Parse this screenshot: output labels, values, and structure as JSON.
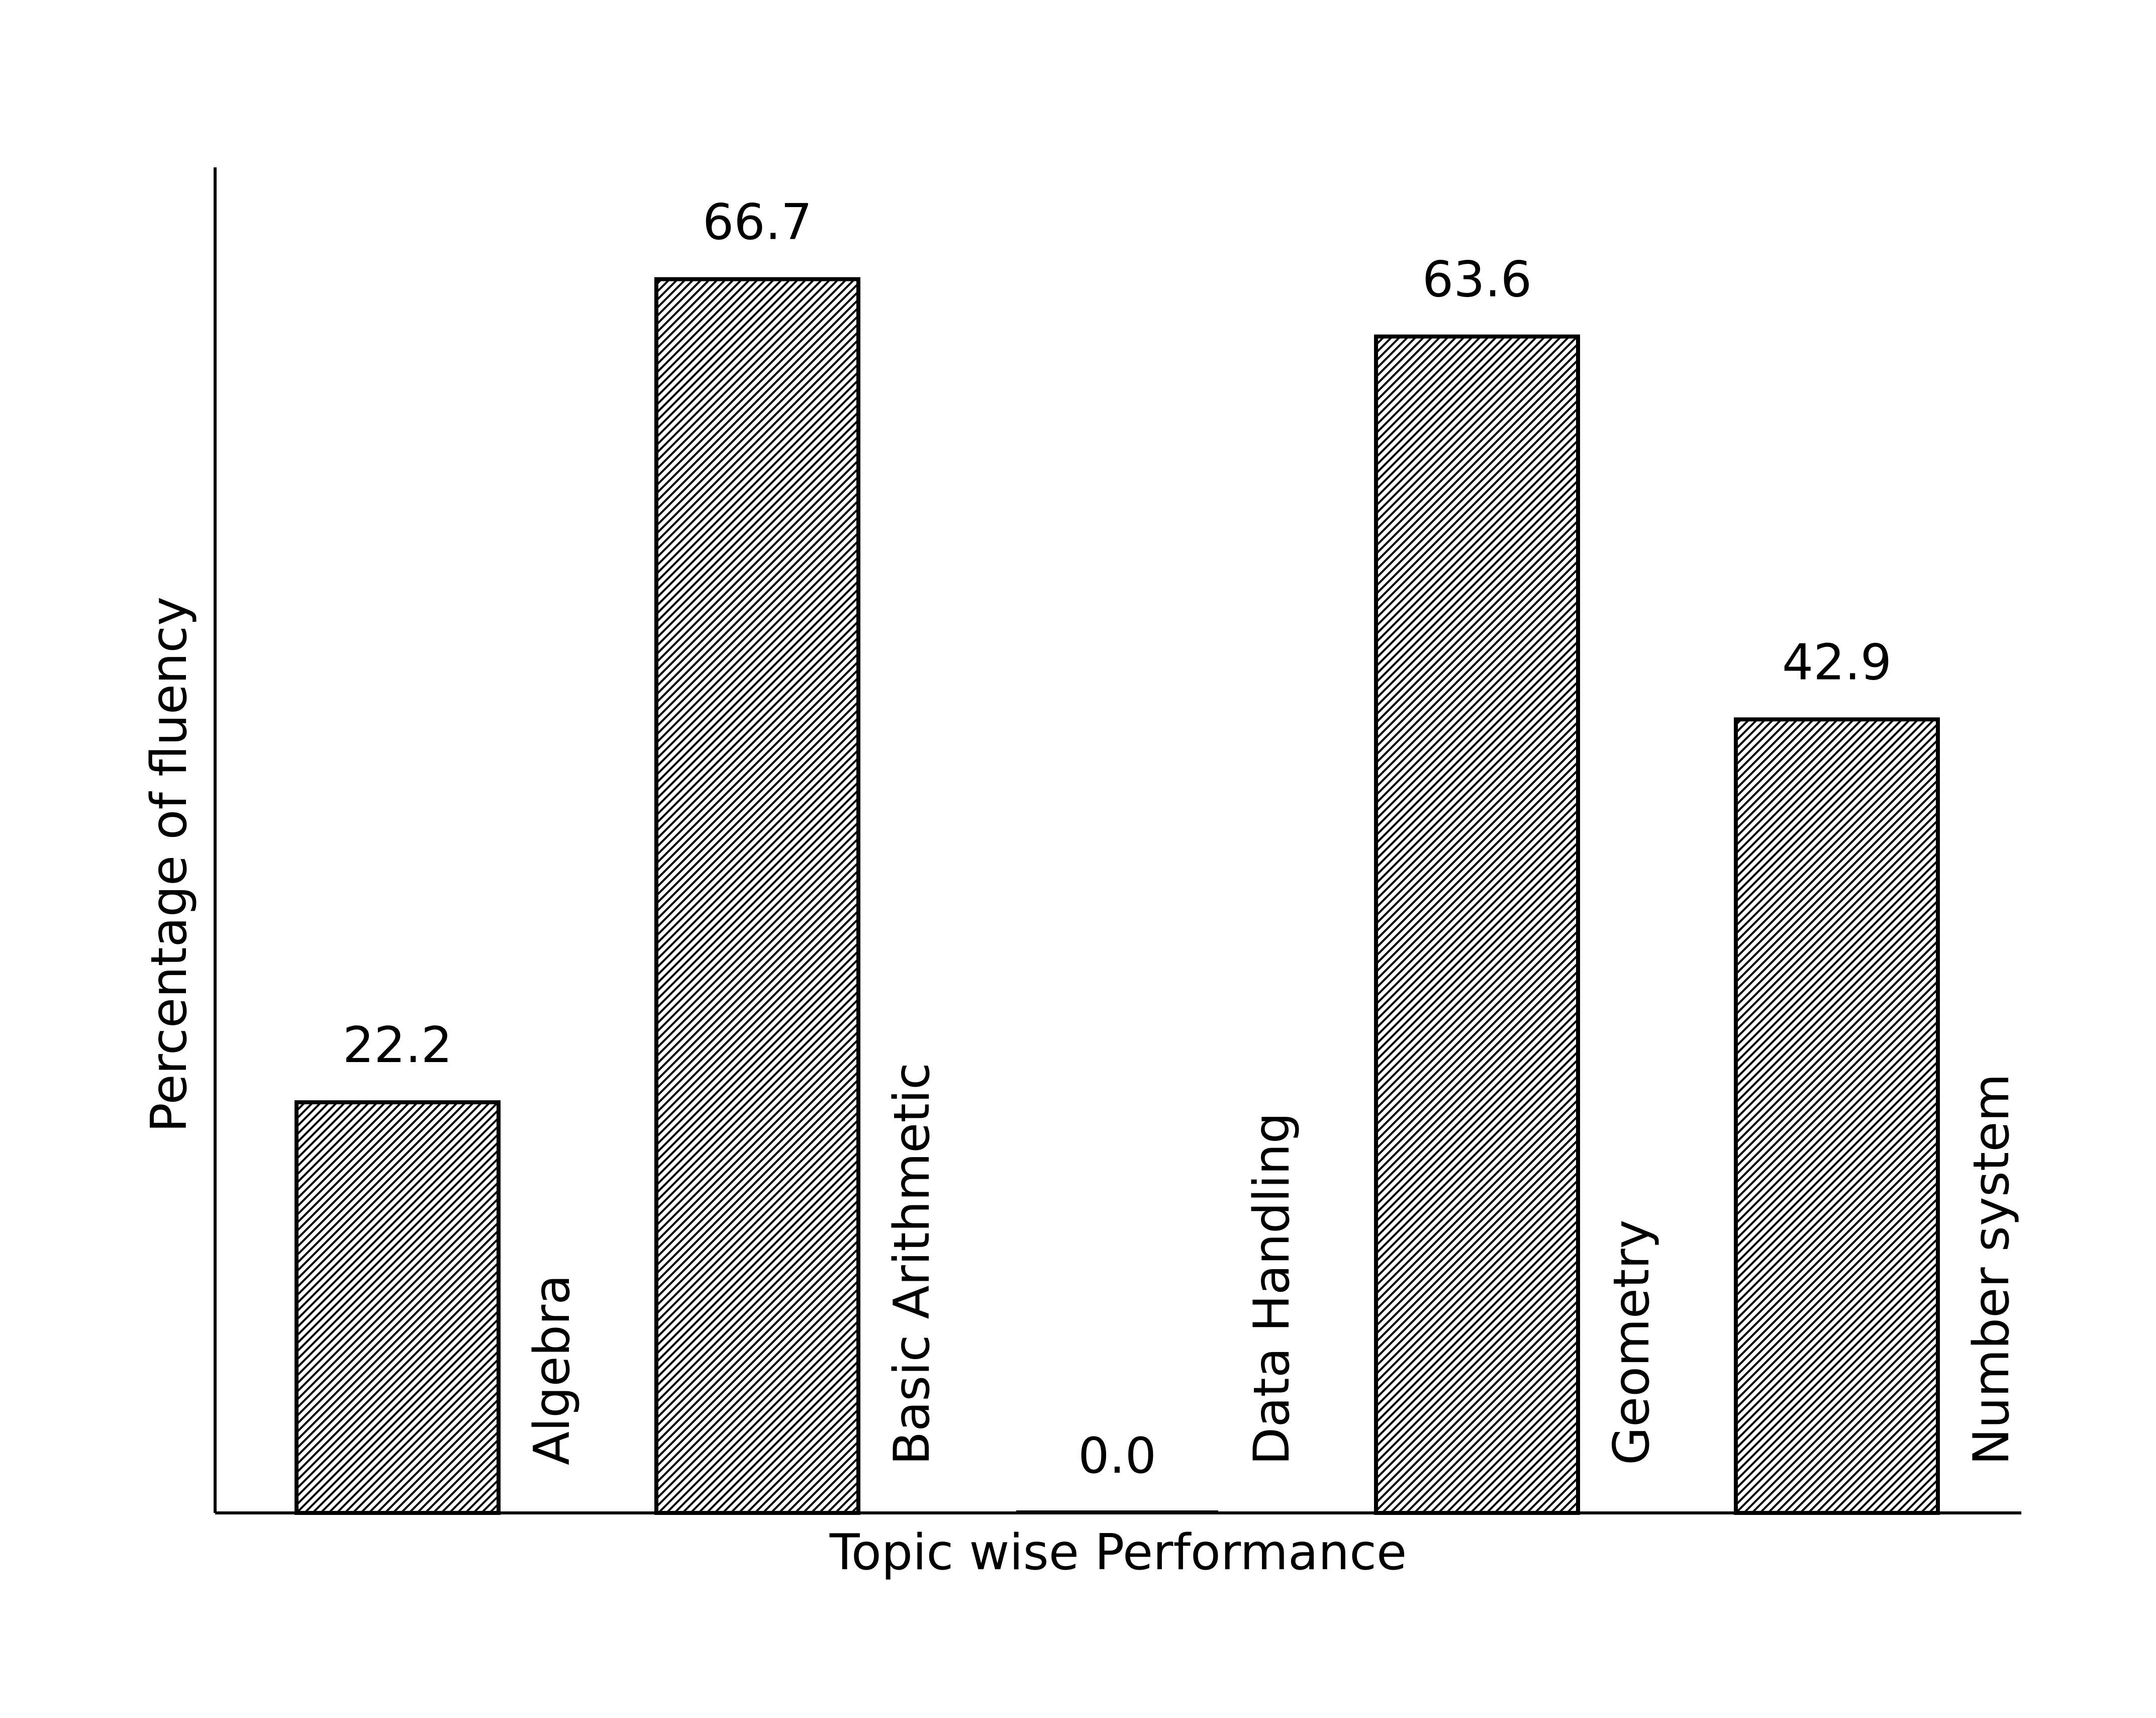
{
  "colors": {
    "bar_stroke": "#000000",
    "bar_hatch": "#000000",
    "bar_fill": "#ffffff",
    "axis": "#000000",
    "text": "#000000"
  },
  "chart_data": {
    "type": "bar",
    "categories": [
      "Algebra",
      "Basic Arithmetic",
      "Data Handling",
      "Geometry",
      "Number system"
    ],
    "values": [
      22.2,
      66.7,
      0.0,
      63.6,
      42.9
    ],
    "value_labels": [
      "22.2",
      "66.7",
      "0.0",
      "63.6",
      "42.9"
    ],
    "title": "",
    "xlabel": "Topic wise Performance",
    "ylabel": "Percentage of fluency",
    "ylim": [
      0,
      70
    ],
    "hatch": "diagonal",
    "grid": false,
    "legend": "none"
  }
}
